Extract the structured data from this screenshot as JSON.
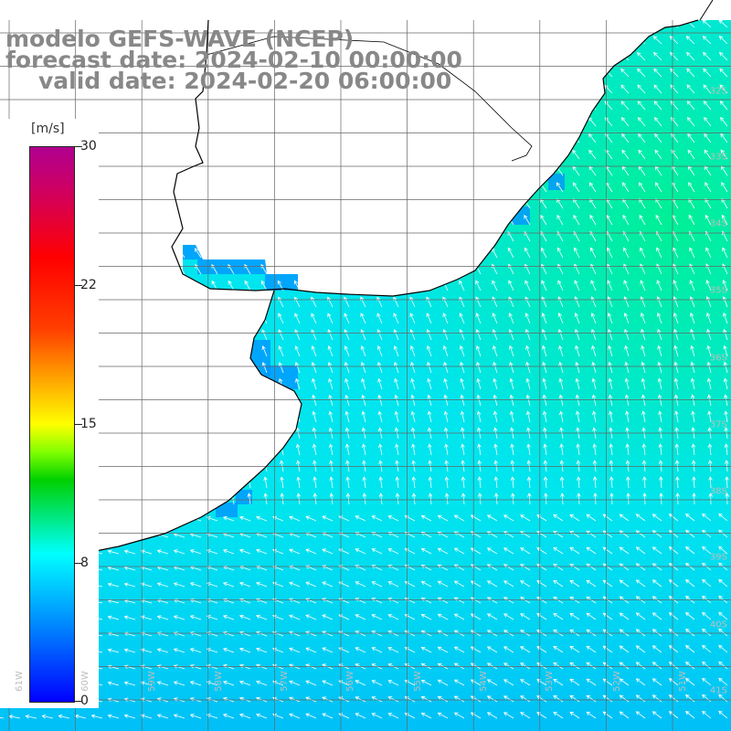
{
  "titles": {
    "line1": "modelo GEFS-WAVE (NCEP)",
    "line2": "forecast date: 2024-02-10 00:00:00",
    "line3": "valid date: 2024-02-20 06:00:00"
  },
  "colorbar": {
    "unit": "[m/s]",
    "min": 0,
    "max": 30,
    "ticks": [
      "30",
      "22",
      "15",
      "8",
      "0"
    ],
    "colors": [
      "#0000ff",
      "#00ffff",
      "#00d000",
      "#ffff00",
      "#ff0000",
      "#b00090"
    ]
  },
  "lat_labels": [
    "32S",
    "33S",
    "34S",
    "35S",
    "36S",
    "37S",
    "38S",
    "39S",
    "40S",
    "41S"
  ],
  "lon_labels": [
    "61W",
    "60W",
    "59W",
    "58W",
    "57W",
    "56W",
    "55W",
    "54W",
    "53W",
    "52W",
    "51W"
  ],
  "colors": {
    "ocean_main": "#00e5ee",
    "ocean_strong": "#00f090",
    "coast_near": "#0090ff",
    "land": "#ffffff",
    "arrow": "#ffffff",
    "coastline": "#000000",
    "grid": "#666666"
  }
}
